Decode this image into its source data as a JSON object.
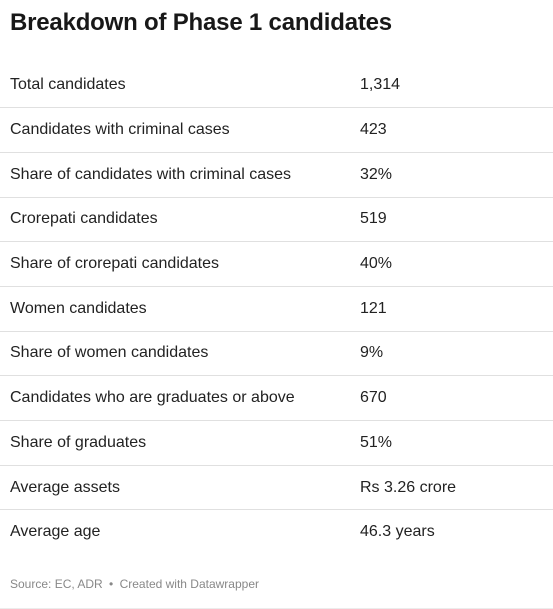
{
  "title": "Breakdown of Phase 1 candidates",
  "chart_data": {
    "type": "table",
    "title": "Breakdown of Phase 1 candidates",
    "columns": [
      "",
      ""
    ],
    "rows": [
      {
        "label": "Total candidates",
        "value": "1,314"
      },
      {
        "label": "Candidates with criminal cases",
        "value": "423"
      },
      {
        "label": "Share of candidates with criminal cases",
        "value": "32%"
      },
      {
        "label": "Crorepati candidates",
        "value": "519"
      },
      {
        "label": "Share of crorepati candidates",
        "value": "40%"
      },
      {
        "label": "Women candidates",
        "value": "121"
      },
      {
        "label": "Share of women candidates",
        "value": "9%"
      },
      {
        "label": "Candidates who are graduates or above",
        "value": "670"
      },
      {
        "label": "Share of graduates",
        "value": "51%"
      },
      {
        "label": "Average assets",
        "value": "Rs 3.26 crore"
      },
      {
        "label": "Average age",
        "value": "46.3 years"
      }
    ]
  },
  "footer": {
    "source": "Source: EC, ADR",
    "separator": "•",
    "credit": "Created with Datawrapper"
  }
}
